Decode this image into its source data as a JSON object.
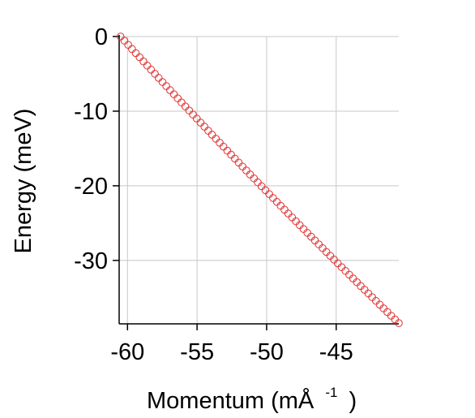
{
  "chart_data": {
    "type": "scatter",
    "xlabel": "Momentum (mÅ",
    "xlabel_sup": "-1",
    "xlabel_close": ")",
    "ylabel": "Energy (meV)",
    "xlim": [
      -60.6,
      -40.5
    ],
    "ylim": [
      -38.5,
      0
    ],
    "xticks": [
      -60,
      -55,
      -50,
      -45
    ],
    "yticks": [
      0,
      -10,
      -20,
      -30
    ],
    "grid": true,
    "marker": "open-circle",
    "marker_color": "#e03030",
    "points": {
      "count": 74,
      "start": [
        -60.5,
        0.0
      ],
      "end": [
        -40.5,
        -38.4
      ],
      "curvature": 0.6
    }
  }
}
